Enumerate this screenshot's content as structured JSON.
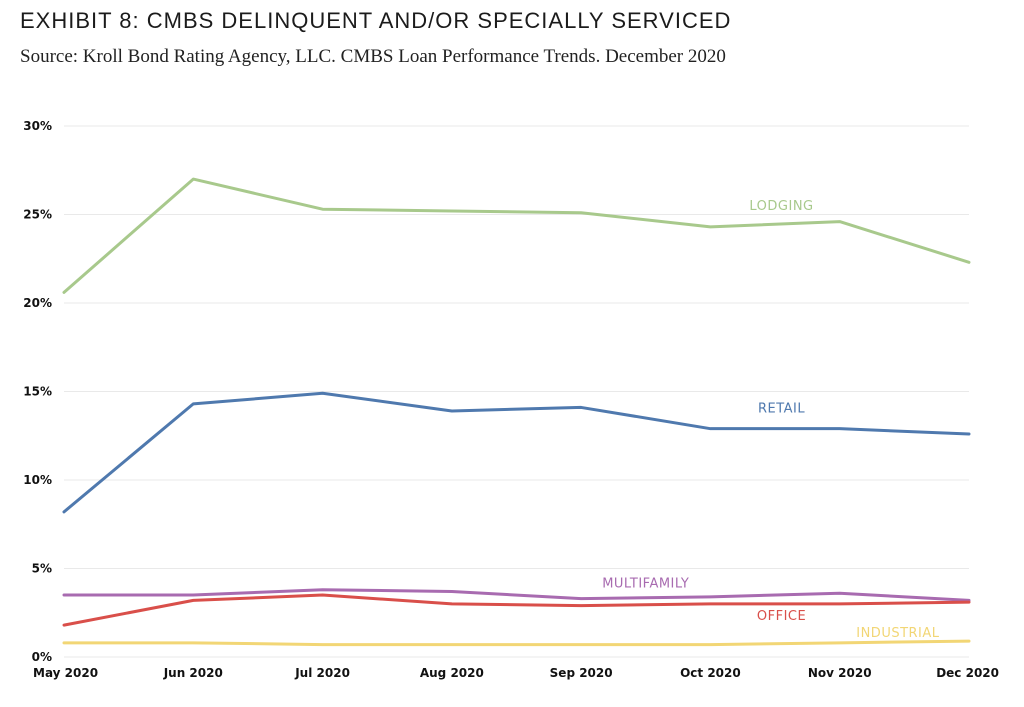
{
  "title": "EXHIBIT 8: CMBS DELINQUENT AND/OR SPECIALLY SERVICED",
  "subtitle": "Source: Kroll Bond Rating Agency, LLC. CMBS Loan Performance Trends. December 2020",
  "chart_data": {
    "type": "line",
    "categories": [
      "May 2020",
      "Jun 2020",
      "Jul 2020",
      "Aug 2020",
      "Sep 2020",
      "Oct 2020",
      "Nov 2020",
      "Dec 2020"
    ],
    "y_ticks": [
      "0%",
      "5%",
      "10%",
      "15%",
      "20%",
      "25%",
      "30%"
    ],
    "ylim": [
      0,
      30
    ],
    "grid": true,
    "series": [
      {
        "name": "LODGING",
        "color": "#a8c98c",
        "values": [
          20.6,
          27.0,
          25.3,
          25.2,
          25.1,
          24.3,
          24.6,
          22.3
        ]
      },
      {
        "name": "RETAIL",
        "color": "#4f79ae",
        "values": [
          8.2,
          14.3,
          14.9,
          13.9,
          14.1,
          12.9,
          12.9,
          12.6
        ]
      },
      {
        "name": "MULTIFAMILY",
        "color": "#a86bb0",
        "values": [
          3.5,
          3.5,
          3.8,
          3.7,
          3.3,
          3.4,
          3.6,
          3.2
        ]
      },
      {
        "name": "OFFICE",
        "color": "#d94f4a",
        "values": [
          1.8,
          3.2,
          3.5,
          3.0,
          2.9,
          3.0,
          3.0,
          3.1
        ]
      },
      {
        "name": "INDUSTRIAL",
        "color": "#f2d675",
        "values": [
          0.8,
          0.8,
          0.7,
          0.7,
          0.7,
          0.7,
          0.8,
          0.9
        ]
      }
    ]
  }
}
